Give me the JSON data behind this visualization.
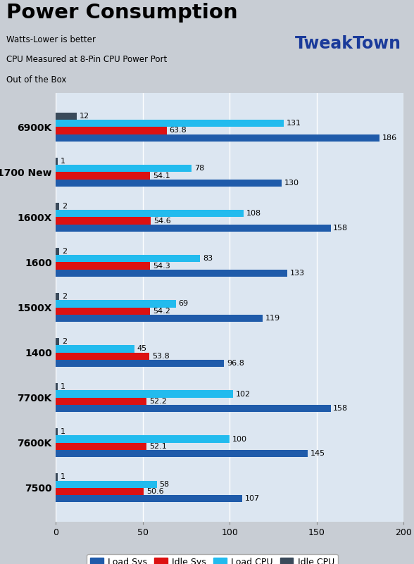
{
  "title": "Power Consumption",
  "subtitle_lines": [
    "Watts-Lower is better",
    "CPU Measured at 8-Pin CPU Power Port",
    "Out of the Box"
  ],
  "categories": [
    "6900K",
    "1700 New",
    "1600X",
    "1600",
    "1500X",
    "1400",
    "7700K",
    "7600K",
    "7500"
  ],
  "series": {
    "Load Sys": [
      186,
      130,
      158,
      133,
      119,
      96.8,
      158,
      145,
      107
    ],
    "Idle Sys": [
      63.8,
      54.1,
      54.6,
      54.3,
      54.2,
      53.8,
      52.2,
      52.1,
      50.6
    ],
    "Load CPU": [
      131,
      78,
      108,
      83,
      69,
      45,
      102,
      100,
      58
    ],
    "Idle CPU": [
      12,
      1,
      2,
      2,
      2,
      2,
      1,
      1,
      1
    ]
  },
  "colors": {
    "Load Sys": "#1f5baa",
    "Idle Sys": "#dd1111",
    "Load CPU": "#22bbee",
    "Idle CPU": "#3a4a5a"
  },
  "xlim": [
    0,
    200
  ],
  "xticks": [
    0,
    50,
    100,
    150,
    200
  ],
  "bar_height": 0.16,
  "bg_color": "#dce6f1",
  "header_bg": "#c8cdd4",
  "title_fontsize": 21,
  "tick_fontsize": 9,
  "value_fontsize": 8,
  "ylabel_fontsize": 10
}
